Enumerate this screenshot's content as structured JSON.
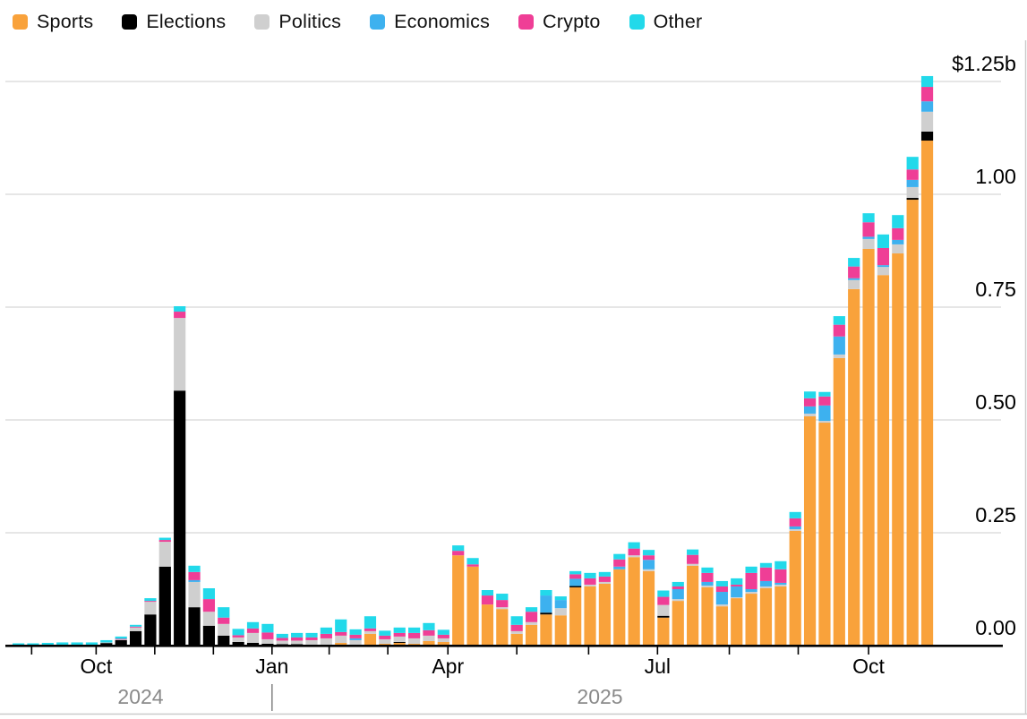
{
  "legend": {
    "items": [
      {
        "label": "Sports",
        "color": "#F9A23B"
      },
      {
        "label": "Elections",
        "color": "#000000"
      },
      {
        "label": "Politics",
        "color": "#CFCFCF"
      },
      {
        "label": "Economics",
        "color": "#3DB1EF"
      },
      {
        "label": "Crypto",
        "color": "#EF3E96"
      },
      {
        "label": "Other",
        "color": "#22D9EA"
      }
    ]
  },
  "chart_data": {
    "type": "bar",
    "stacked": true,
    "title": "",
    "unit": "billions USD (weekly volume)",
    "ylim": [
      0,
      1.25
    ],
    "grid": true,
    "y_axis": {
      "ticks": [
        {
          "label": "$1.25b",
          "value": 1.25
        },
        {
          "label": "1.00",
          "value": 1.0
        },
        {
          "label": "0.75",
          "value": 0.75
        },
        {
          "label": "0.50",
          "value": 0.5
        },
        {
          "label": "0.25",
          "value": 0.25
        },
        {
          "label": "0.00",
          "value": 0.0
        }
      ]
    },
    "x_axis": {
      "month_labels": [
        "Oct",
        "Jan",
        "Apr",
        "Jul",
        "Oct"
      ],
      "year_labels": [
        "2024",
        "2025"
      ],
      "year_divider": "|"
    },
    "series": [
      {
        "name": "Sports",
        "color": "#F9A23B",
        "values": [
          0,
          0,
          0,
          0,
          0,
          0,
          0,
          0,
          0,
          0,
          0,
          0,
          0,
          0,
          0,
          0,
          0,
          0,
          0,
          0,
          0,
          0,
          0.006,
          0,
          0.026,
          0.004,
          0.006,
          0.004,
          0.01,
          0.008,
          0.2,
          0.175,
          0.091,
          0.081,
          0.026,
          0.046,
          0.069,
          0.067,
          0.129,
          0.131,
          0.137,
          0.169,
          0.196,
          0.165,
          0.062,
          0.099,
          0.177,
          0.129,
          0.087,
          0.105,
          0.115,
          0.127,
          0.131,
          0.254,
          0.508,
          0.494,
          0.637,
          0.79,
          0.879,
          0.821,
          0.869,
          0.988,
          1.119
        ]
      },
      {
        "name": "Elections",
        "color": "#000000",
        "values": [
          0.001,
          0.001,
          0.001,
          0.002,
          0.002,
          0.002,
          0.006,
          0.012,
          0.032,
          0.069,
          0.175,
          0.565,
          0.085,
          0.044,
          0.022,
          0.008,
          0.006,
          0.004,
          0.003,
          0.003,
          0.002,
          0.002,
          0,
          0,
          0,
          0,
          0.002,
          0,
          0,
          0,
          0,
          0,
          0,
          0,
          0,
          0,
          0.004,
          0,
          0.003,
          0,
          0,
          0,
          0,
          0,
          0.004,
          0,
          0,
          0,
          0,
          0,
          0,
          0,
          0,
          0,
          0,
          0,
          0,
          0,
          0,
          0,
          0,
          0.004,
          0.02
        ]
      },
      {
        "name": "Politics",
        "color": "#CFCFCF",
        "values": [
          0,
          0,
          0,
          0,
          0,
          0,
          0.001,
          0.002,
          0.008,
          0.028,
          0.055,
          0.161,
          0.056,
          0.031,
          0.026,
          0.01,
          0.022,
          0.01,
          0.008,
          0.008,
          0.01,
          0.014,
          0.016,
          0.012,
          0.006,
          0.01,
          0.012,
          0.012,
          0.012,
          0.008,
          0,
          0,
          0,
          0.004,
          0.006,
          0.006,
          0,
          0.016,
          0,
          0.004,
          0.004,
          0,
          0.004,
          0.004,
          0.024,
          0.004,
          0.004,
          0.004,
          0.004,
          0.002,
          0.004,
          0.004,
          0.004,
          0.004,
          0.006,
          0.004,
          0.008,
          0.02,
          0.022,
          0.018,
          0.02,
          0.024,
          0.044
        ]
      },
      {
        "name": "Economics",
        "color": "#3DB1EF",
        "values": [
          0,
          0,
          0,
          0,
          0,
          0,
          0,
          0,
          0,
          0,
          0,
          0,
          0.004,
          0,
          0,
          0,
          0,
          0,
          0,
          0,
          0,
          0,
          0,
          0.004,
          0,
          0,
          0,
          0,
          0,
          0,
          0,
          0,
          0,
          0,
          0,
          0,
          0.038,
          0.018,
          0.016,
          0,
          0,
          0.006,
          0,
          0.021,
          0,
          0.022,
          0,
          0.008,
          0.028,
          0.024,
          0.006,
          0.012,
          0.004,
          0.006,
          0.016,
          0.034,
          0.04,
          0.004,
          0.005,
          0.004,
          0.01,
          0.016,
          0.023
        ]
      },
      {
        "name": "Crypto",
        "color": "#EF3E96",
        "values": [
          0,
          0,
          0,
          0,
          0,
          0,
          0,
          0.001,
          0.002,
          0.002,
          0.004,
          0.014,
          0.018,
          0.028,
          0.014,
          0.005,
          0.01,
          0.015,
          0.006,
          0.007,
          0.006,
          0.01,
          0.008,
          0.008,
          0.006,
          0.008,
          0.008,
          0.012,
          0.012,
          0.008,
          0.01,
          0.005,
          0.02,
          0.016,
          0.014,
          0.023,
          0,
          0,
          0.01,
          0.014,
          0.012,
          0.016,
          0.015,
          0.01,
          0.018,
          0.006,
          0.02,
          0.02,
          0.012,
          0.004,
          0.036,
          0.03,
          0.03,
          0.018,
          0.018,
          0.02,
          0.026,
          0.026,
          0.032,
          0.038,
          0.026,
          0.023,
          0.032
        ]
      },
      {
        "name": "Other",
        "color": "#22D9EA",
        "values": [
          0.004,
          0.004,
          0.005,
          0.005,
          0.005,
          0.005,
          0.005,
          0.005,
          0.004,
          0.006,
          0.005,
          0.012,
          0.014,
          0.024,
          0.023,
          0.014,
          0.014,
          0.019,
          0.009,
          0.01,
          0.01,
          0.014,
          0.028,
          0.012,
          0.027,
          0.011,
          0.012,
          0.012,
          0.016,
          0.011,
          0.012,
          0.014,
          0.012,
          0.014,
          0.019,
          0.01,
          0.012,
          0.008,
          0.007,
          0.012,
          0.01,
          0.012,
          0.014,
          0.012,
          0.014,
          0.01,
          0.012,
          0.012,
          0.012,
          0.014,
          0.014,
          0.01,
          0.018,
          0.014,
          0.015,
          0.01,
          0.019,
          0.019,
          0.02,
          0.03,
          0.029,
          0.028,
          0.024
        ]
      }
    ],
    "colors": {
      "grid": "#DEDEDE",
      "baseline": "#000000",
      "axis_text": "#000000",
      "year_text": "#8A8A8A",
      "frame": "#CBCBCB"
    }
  }
}
